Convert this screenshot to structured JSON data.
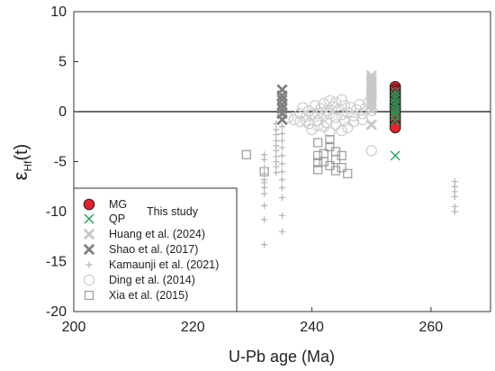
{
  "chart_data": {
    "type": "scatter",
    "xlabel": "U-Pb age (Ma)",
    "ylabel_main": "ε",
    "ylabel_sub": "Hf",
    "ylabel_suffix": "(t)",
    "xlim": [
      200,
      270
    ],
    "ylim": [
      -20,
      10
    ],
    "x_ticks": [
      "200",
      "220",
      "240",
      "260"
    ],
    "x_tick_values": [
      200,
      220,
      240,
      260
    ],
    "y_ticks": [
      "10",
      "5",
      "0",
      "-5",
      "-10",
      "-15",
      "-20"
    ],
    "y_tick_values": [
      10,
      5,
      0,
      -5,
      -10,
      -15,
      -20
    ],
    "reference_line_y": 0,
    "this_study_label": "This study",
    "series": [
      {
        "name": "MG",
        "marker": "filled-circle",
        "color": "#e8202a",
        "x": [
          254,
          254,
          254,
          254,
          254,
          254,
          254,
          254,
          254,
          254,
          254,
          254,
          254,
          254,
          254,
          254,
          254
        ],
        "y": [
          2.5,
          2.2,
          2.0,
          1.7,
          1.5,
          1.2,
          1.0,
          0.8,
          0.5,
          0.3,
          0.1,
          -0.2,
          -0.5,
          -0.8,
          -1.1,
          -1.4,
          -1.6
        ]
      },
      {
        "name": "QP",
        "marker": "x",
        "color": "#1aa05a",
        "x": [
          254,
          254,
          254,
          254,
          254,
          254,
          254,
          254,
          254,
          254
        ],
        "y": [
          2.0,
          1.6,
          1.3,
          0.9,
          0.6,
          0.2,
          -0.1,
          -0.4,
          -0.9,
          -4.4
        ]
      },
      {
        "name": "Huang et al. (2024)",
        "marker": "x-light",
        "color": "#c8c8c8",
        "x": [
          250,
          250,
          250,
          250,
          250,
          250,
          250,
          250,
          250,
          250,
          250,
          250
        ],
        "y": [
          3.6,
          3.3,
          3.0,
          2.6,
          2.3,
          2.0,
          1.7,
          1.4,
          1.1,
          0.7,
          0.2,
          -1.3
        ]
      },
      {
        "name": "Shao et al. (2017)",
        "marker": "x-dark",
        "color": "#808080",
        "x": [
          235,
          235,
          235,
          235,
          235,
          235,
          235
        ],
        "y": [
          2.2,
          1.6,
          1.2,
          0.7,
          0.3,
          -0.2,
          -0.8
        ]
      },
      {
        "name": "Kamaunji et al. (2021)",
        "marker": "plus",
        "color": "#b4b4b4",
        "x": [
          232,
          232,
          232,
          232,
          232,
          232,
          232,
          232,
          232,
          232,
          232,
          234,
          234,
          234,
          234,
          234,
          234,
          234,
          234,
          234,
          234,
          235,
          235,
          235,
          235,
          235,
          235,
          235,
          235,
          235,
          235,
          235,
          235,
          264,
          264,
          264,
          264,
          264,
          264
        ],
        "y": [
          -4.3,
          -4.8,
          -5.6,
          -6.2,
          -6.8,
          -7.1,
          -7.6,
          -8.2,
          -9.4,
          -10.8,
          -13.3,
          -1.2,
          -1.8,
          -2.3,
          -2.9,
          -3.4,
          -3.9,
          -4.5,
          -5.0,
          -5.5,
          -6.1,
          -1.5,
          -2.2,
          -2.9,
          -3.6,
          -4.4,
          -5.2,
          -6.0,
          -6.8,
          -7.6,
          -8.6,
          -10.4,
          -12.0,
          -7.0,
          -7.5,
          -8.0,
          -8.5,
          -9.5,
          -10.0
        ]
      },
      {
        "name": "Ding  et al. (2014)",
        "marker": "open-circle",
        "color": "#cccccc",
        "x": [
          236,
          237,
          238,
          238.5,
          239,
          239.5,
          240,
          240.5,
          241,
          241,
          241.5,
          242,
          242,
          242.5,
          243,
          243,
          243.5,
          244,
          244,
          244.5,
          245,
          245,
          245.5,
          246,
          246.5,
          247,
          247.5,
          248,
          248.5,
          249,
          249.5,
          250,
          238,
          239.5,
          241,
          242.5,
          244,
          245.5,
          247,
          248.5,
          240,
          243,
          246,
          239,
          242,
          245,
          250
        ],
        "y": [
          -0.6,
          -0.8,
          -0.2,
          0.4,
          -0.5,
          0.1,
          -0.3,
          0.6,
          -0.2,
          -0.9,
          0.3,
          0.8,
          -0.4,
          0.1,
          -0.2,
          1.1,
          0.5,
          -0.6,
          0.9,
          0.2,
          -0.3,
          1.2,
          0.6,
          -0.1,
          0.4,
          -0.4,
          0.2,
          0.7,
          -0.2,
          0.3,
          0.9,
          0.1,
          -1.0,
          -1.2,
          -1.4,
          -1.1,
          -1.3,
          -0.9,
          -1.0,
          -0.8,
          -1.8,
          -2.0,
          -1.6,
          -0.9,
          -1.5,
          -1.9,
          -3.9
        ]
      },
      {
        "name": "Xia et al. (2015)",
        "marker": "open-square",
        "color": "#9a9a9a",
        "x": [
          229,
          232,
          241,
          241,
          241,
          241,
          242,
          242,
          243,
          243,
          243,
          244,
          244,
          244,
          245,
          245,
          246
        ],
        "y": [
          -4.3,
          -6.0,
          -3.1,
          -4.4,
          -5.1,
          -5.8,
          -4.2,
          -5.0,
          -2.8,
          -3.5,
          -5.4,
          -4.0,
          -4.8,
          -5.9,
          -4.4,
          -5.6,
          -6.2
        ]
      }
    ]
  }
}
